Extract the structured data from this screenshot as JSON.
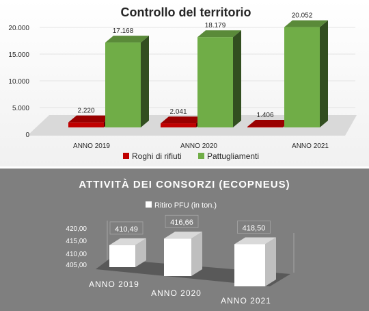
{
  "colors": {
    "roghi": "#c00000",
    "pattugliamenti": "#70ad47",
    "ritiro": "#ffffff"
  },
  "chart_data": [
    {
      "type": "bar",
      "title": "Controllo del territorio",
      "categories": [
        "ANNO 2019",
        "ANNO 2020",
        "ANNO 2021"
      ],
      "series": [
        {
          "name": "Roghi di rifiuti",
          "values": [
            2220,
            2041,
            1406
          ],
          "labels": [
            "2.220",
            "2.041",
            "1.406"
          ]
        },
        {
          "name": "Pattugliamenti",
          "values": [
            17168,
            18179,
            20052
          ],
          "labels": [
            "17.168",
            "18.179",
            "20.052"
          ]
        }
      ],
      "ylim": [
        0,
        20000
      ],
      "yticks": [
        0,
        5000,
        10000,
        15000,
        20000
      ],
      "ytick_labels": [
        "0",
        "5.000",
        "10.000",
        "15.000",
        "20.000"
      ],
      "legend": "bottom",
      "grid": true
    },
    {
      "type": "bar",
      "title": "ATTIVITÀ  DEI CONSORZI (ECOPNEUS)",
      "categories": [
        "ANNO 2019",
        "ANNO 2020",
        "ANNO 2021"
      ],
      "series": [
        {
          "name": "Ritiro PFU (in ton.)",
          "values": [
            410.49,
            416.66,
            418.5
          ],
          "labels": [
            "410,49",
            "416,66",
            "418,50"
          ]
        }
      ],
      "ylim": [
        405,
        420
      ],
      "yticks": [
        405,
        410,
        415,
        420
      ],
      "ytick_labels": [
        "405,00",
        "410,00",
        "415,00",
        "420,00"
      ],
      "legend": "top",
      "grid": false
    }
  ]
}
